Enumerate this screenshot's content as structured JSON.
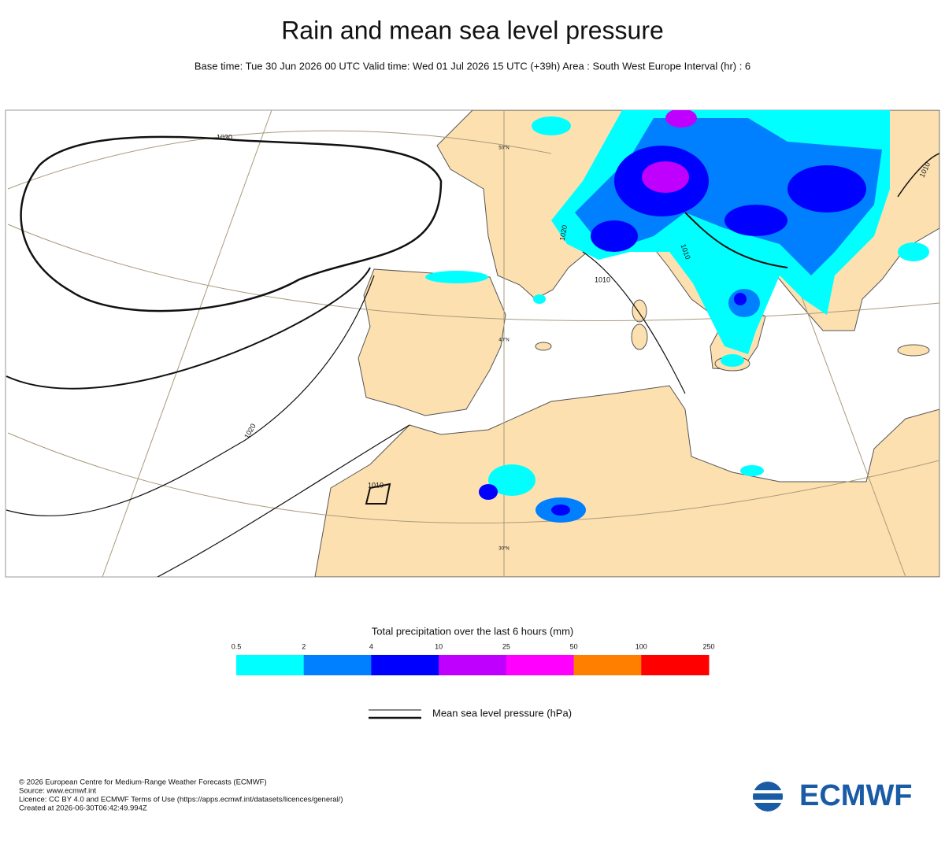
{
  "header": {
    "title": "Rain and mean sea level pressure",
    "subtitle": "Base time: Tue 30 Jun 2026 00 UTC Valid time: Wed 01 Jul 2026 15 UTC (+39h) Area : South West Europe Interval (hr) : 6"
  },
  "map": {
    "isobar_labels": [
      "1030",
      "1020",
      "1010",
      "1020",
      "1010",
      "1010",
      "1010"
    ],
    "latitude_labels": [
      "50°N",
      "40°N",
      "30°N"
    ]
  },
  "colorbar": {
    "title": "Total precipitation over the last 6 hours (mm)",
    "ticks": [
      0.5,
      2,
      4,
      10,
      25,
      50,
      100,
      250
    ],
    "colors": [
      "#00ffff",
      "#0080ff",
      "#0000ff",
      "#c000ff",
      "#ff00ff",
      "#ff8000",
      "#ff0000"
    ]
  },
  "pressure_legend": "Mean sea level pressure (hPa)",
  "footer": [
    "© 2026 European Centre for Medium-Range Weather Forecasts (ECMWF)",
    "Source: www.ecmwf.int",
    "Licence: CC BY 4.0 and ECMWF Terms of Use (https://apps.ecmwf.int/datasets/licences/general/)",
    "Created at 2026-06-30T06:42:49.994Z"
  ],
  "logo": "ECMWF"
}
